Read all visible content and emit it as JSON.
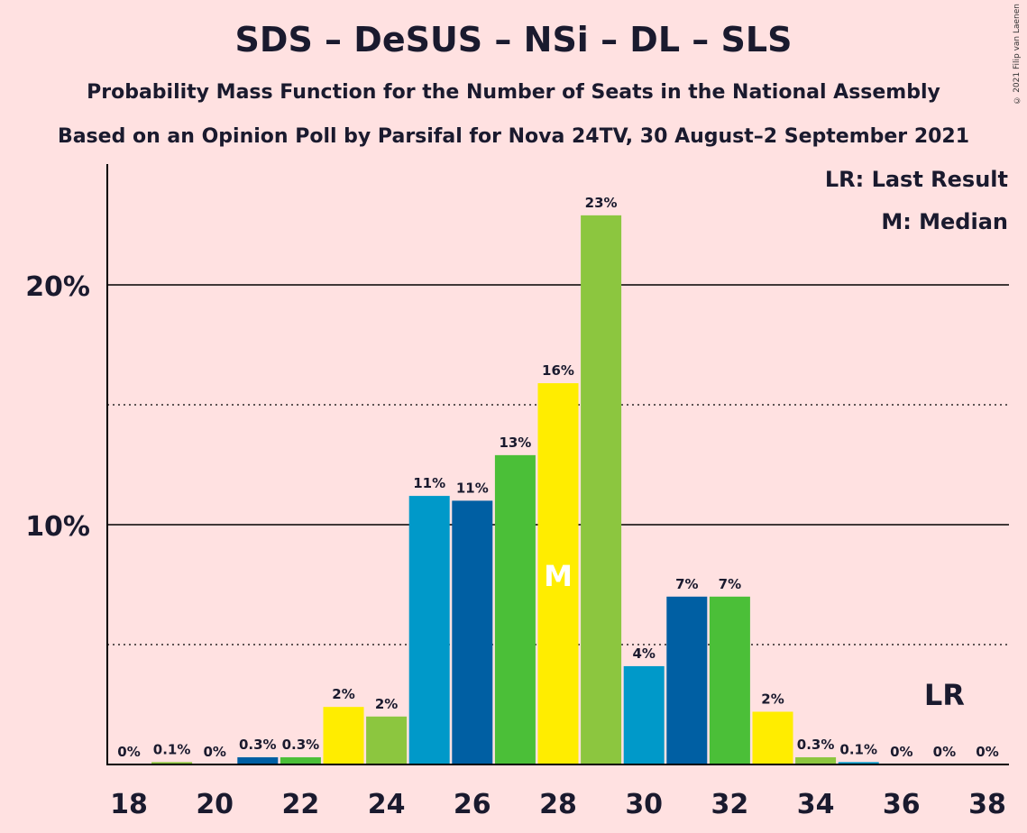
{
  "header": {
    "title": "SDS – DeSUS – NSi – DL – SLS",
    "subtitle1": "Probability Mass Function for the Number of Seats in the National Assembly",
    "subtitle2": "Based on an Opinion Poll by Parsifal for Nova 24TV, 30 August–2 September 2021",
    "copyright": "© 2021 Filip van Laenen"
  },
  "legend": {
    "last_result": "LR: Last Result",
    "median": "M: Median"
  },
  "chart_data": {
    "type": "bar",
    "categories": [
      18,
      19,
      20,
      21,
      22,
      23,
      24,
      25,
      26,
      27,
      28,
      29,
      30,
      31,
      32,
      33,
      34,
      35,
      36,
      37,
      38
    ],
    "values": [
      0,
      0.1,
      0,
      0.3,
      0.3,
      2.4,
      2.0,
      11.2,
      11.0,
      12.9,
      15.9,
      22.9,
      4.1,
      7.0,
      7.0,
      2.2,
      0.3,
      0.1,
      0,
      0,
      0
    ],
    "data_labels": [
      "0%",
      "0.1%",
      "0%",
      "0.3%",
      "0.3%",
      "2%",
      "2%",
      "11%",
      "11%",
      "13%",
      "16%",
      "23%",
      "4%",
      "7%",
      "7%",
      "2%",
      "0.3%",
      "0.1%",
      "0%",
      "0%",
      "0%"
    ],
    "x_tick_labels": [
      "18",
      "20",
      "22",
      "24",
      "26",
      "28",
      "30",
      "32",
      "34",
      "36",
      "38"
    ],
    "y_tick_labels": [
      "10%",
      "20%"
    ],
    "ylim": [
      0,
      25
    ],
    "median": 28,
    "median_label": "M",
    "last_result": 37,
    "last_result_label": "LR",
    "colors": [
      "#FFED00",
      "#8CC63F",
      "#0099C9",
      "#005FA3",
      "#4BBF38"
    ]
  }
}
